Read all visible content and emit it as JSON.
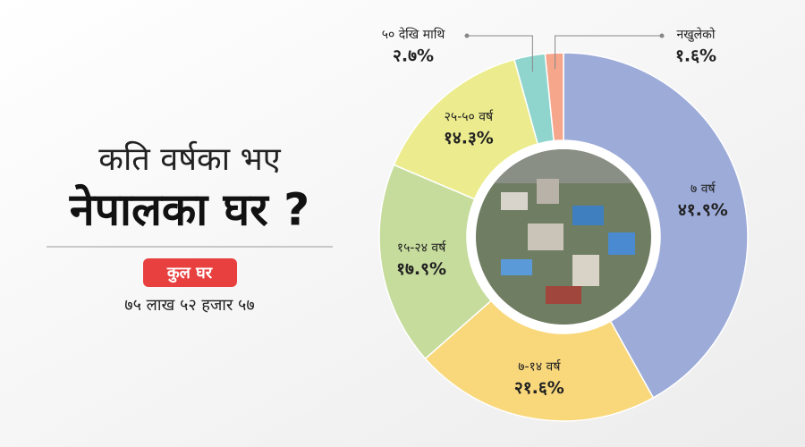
{
  "chart_data": {
    "type": "donut",
    "title": "कति वर्षका भए",
    "subtitle": "नेपालका घर ?",
    "annotations": [
      "कुल घर",
      "७५ लाख ५२ हजार ५७"
    ],
    "categories": [
      "७ वर्ष",
      "७-१४ वर्ष",
      "१५-२४ वर्ष",
      "२५-५० वर्ष",
      "५० देखि माथि",
      "नखुलेको"
    ],
    "values": [
      41.9,
      21.6,
      17.9,
      14.3,
      2.7,
      1.6
    ],
    "value_labels": [
      "४१.९%",
      "२१.६%",
      "१७.९%",
      "१४.३%",
      "२.७%",
      "१.६%"
    ],
    "colors": [
      "#9dabd9",
      "#f9d87c",
      "#c6dc9c",
      "#ecec8e",
      "#8fd4cd",
      "#f6a68b"
    ]
  }
}
